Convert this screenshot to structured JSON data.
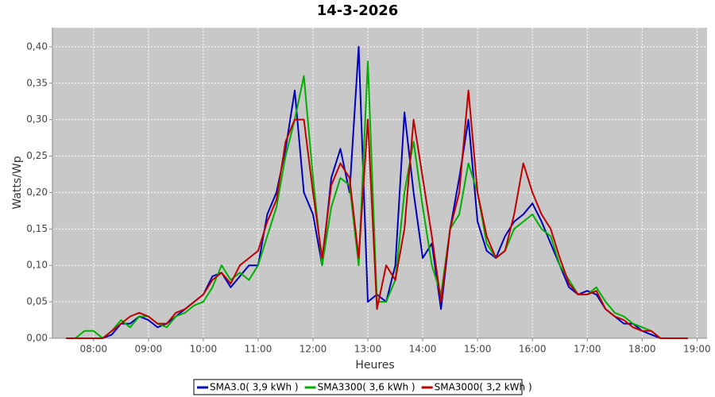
{
  "chart_data": {
    "type": "line",
    "title": "14-3-2026",
    "xlabel": "Heures",
    "ylabel": "Watts/Wp",
    "x": [
      450,
      460,
      470,
      480,
      490,
      500,
      510,
      520,
      530,
      540,
      550,
      560,
      570,
      580,
      590,
      600,
      610,
      620,
      630,
      640,
      650,
      660,
      670,
      680,
      690,
      700,
      710,
      720,
      730,
      740,
      750,
      760,
      770,
      780,
      790,
      800,
      810,
      820,
      830,
      840,
      850,
      860,
      870,
      880,
      890,
      900,
      910,
      920,
      930,
      940,
      950,
      960,
      970,
      980,
      990,
      1000,
      1010,
      1020,
      1030,
      1040,
      1050,
      1060,
      1070,
      1080,
      1090,
      1100,
      1110,
      1120,
      1130
    ],
    "series": [
      {
        "name": "SMA3.0( 3,9 kWh )",
        "color": "#0000c0",
        "values": [
          0,
          0,
          0,
          0,
          0,
          0.005,
          0.02,
          0.02,
          0.03,
          0.025,
          0.015,
          0.02,
          0.03,
          0.04,
          0.05,
          0.06,
          0.085,
          0.09,
          0.07,
          0.085,
          0.1,
          0.1,
          0.17,
          0.2,
          0.26,
          0.34,
          0.2,
          0.17,
          0.1,
          0.22,
          0.26,
          0.2,
          0.4,
          0.05,
          0.06,
          0.05,
          0.1,
          0.31,
          0.2,
          0.11,
          0.13,
          0.04,
          0.15,
          0.22,
          0.3,
          0.16,
          0.12,
          0.11,
          0.14,
          0.16,
          0.17,
          0.185,
          0.16,
          0.13,
          0.1,
          0.07,
          0.06,
          0.065,
          0.06,
          0.04,
          0.03,
          0.02,
          0.02,
          0.01,
          0.005,
          0,
          0,
          0,
          0
        ]
      },
      {
        "name": "SMA3300( 3,6 kWh )",
        "color": "#00b000",
        "values": [
          0,
          0,
          0.01,
          0.01,
          0,
          0.01,
          0.025,
          0.015,
          0.03,
          0.03,
          0.02,
          0.015,
          0.03,
          0.035,
          0.045,
          0.05,
          0.07,
          0.1,
          0.08,
          0.09,
          0.08,
          0.1,
          0.14,
          0.18,
          0.25,
          0.3,
          0.36,
          0.22,
          0.1,
          0.18,
          0.22,
          0.21,
          0.1,
          0.38,
          0.05,
          0.05,
          0.08,
          0.2,
          0.27,
          0.18,
          0.1,
          0.06,
          0.15,
          0.17,
          0.24,
          0.2,
          0.13,
          0.11,
          0.12,
          0.15,
          0.16,
          0.17,
          0.15,
          0.14,
          0.1,
          0.08,
          0.06,
          0.06,
          0.07,
          0.05,
          0.035,
          0.03,
          0.02,
          0.015,
          0.01,
          0,
          0,
          0,
          0
        ]
      },
      {
        "name": "SMA3000( 3,2 kWh )",
        "color": "#c00000",
        "values": [
          0,
          0,
          0,
          0,
          0,
          0.01,
          0.02,
          0.03,
          0.035,
          0.03,
          0.02,
          0.02,
          0.035,
          0.04,
          0.05,
          0.06,
          0.08,
          0.09,
          0.075,
          0.1,
          0.11,
          0.12,
          0.16,
          0.19,
          0.27,
          0.3,
          0.3,
          0.2,
          0.11,
          0.21,
          0.24,
          0.22,
          0.11,
          0.3,
          0.04,
          0.1,
          0.08,
          0.15,
          0.3,
          0.22,
          0.14,
          0.05,
          0.15,
          0.2,
          0.34,
          0.2,
          0.14,
          0.11,
          0.12,
          0.17,
          0.24,
          0.2,
          0.17,
          0.15,
          0.11,
          0.075,
          0.06,
          0.06,
          0.065,
          0.04,
          0.03,
          0.025,
          0.015,
          0.01,
          0.01,
          0,
          0,
          0,
          0
        ]
      }
    ],
    "xlim": [
      435,
      1151
    ],
    "xticks": [
      {
        "value": 480,
        "label": "08:00"
      },
      {
        "value": 540,
        "label": "09:00"
      },
      {
        "value": 600,
        "label": "10:00"
      },
      {
        "value": 660,
        "label": "11:00"
      },
      {
        "value": 720,
        "label": "12:00"
      },
      {
        "value": 780,
        "label": "13:00"
      },
      {
        "value": 840,
        "label": "14:00"
      },
      {
        "value": 900,
        "label": "15:00"
      },
      {
        "value": 960,
        "label": "16:00"
      },
      {
        "value": 1020,
        "label": "17:00"
      },
      {
        "value": 1080,
        "label": "18:00"
      },
      {
        "value": 1140,
        "label": "19:00"
      }
    ],
    "ylim": [
      0,
      0.426
    ],
    "yticks": [
      {
        "value": 0,
        "label": "0,00"
      },
      {
        "value": 0.05,
        "label": "0,05"
      },
      {
        "value": 0.1,
        "label": "0,10"
      },
      {
        "value": 0.15,
        "label": "0,15"
      },
      {
        "value": 0.2,
        "label": "0,20"
      },
      {
        "value": 0.25,
        "label": "0,25"
      },
      {
        "value": 0.3,
        "label": "0,30"
      },
      {
        "value": 0.35,
        "label": "0,35"
      },
      {
        "value": 0.4,
        "label": "0,40"
      }
    ],
    "grid": true
  }
}
